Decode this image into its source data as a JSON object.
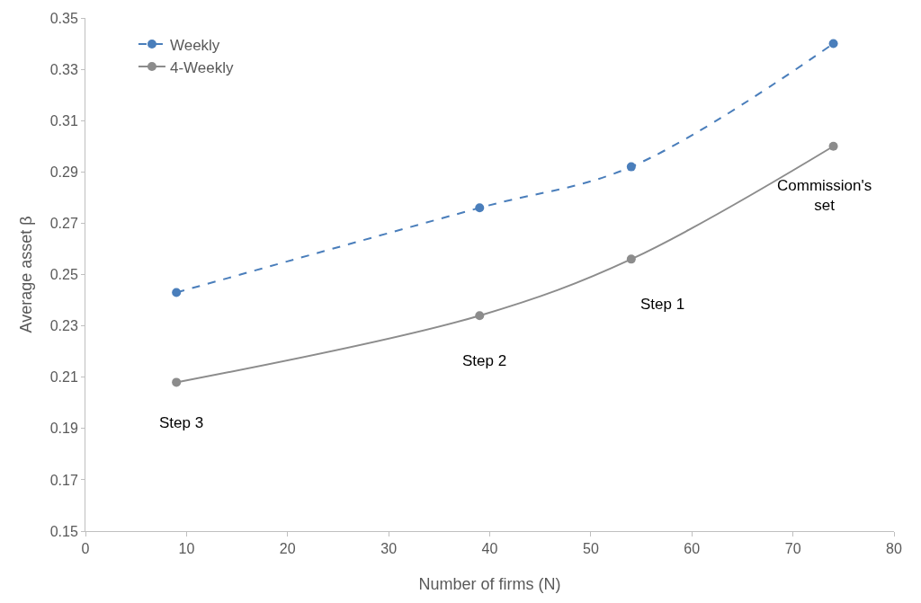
{
  "chart_data": {
    "type": "line",
    "xlabel": "Number of firms (N)",
    "ylabel": "Average asset β",
    "x": [
      9,
      39,
      54,
      74
    ],
    "series": [
      {
        "name": "Weekly",
        "color": "#4a7ebb",
        "values": [
          0.243,
          0.276,
          0.292,
          0.34
        ],
        "line_style": "dashed"
      },
      {
        "name": "4-Weekly",
        "color": "#8c8c8c",
        "values": [
          0.208,
          0.234,
          0.256,
          0.3
        ],
        "line_style": "solid"
      }
    ],
    "xlim": [
      0,
      80
    ],
    "xticks": [
      0,
      10,
      20,
      30,
      40,
      50,
      60,
      70,
      80
    ],
    "ylim": [
      0.15,
      0.35
    ],
    "yticks": [
      {
        "value": 0.15,
        "label": "0.15"
      },
      {
        "value": 0.17,
        "label": "0.17"
      },
      {
        "value": 0.19,
        "label": "0.19"
      },
      {
        "value": 0.21,
        "label": "0.21"
      },
      {
        "value": 0.23,
        "label": "0.23"
      },
      {
        "value": 0.25,
        "label": "0.25"
      },
      {
        "value": 0.27,
        "label": "0.27"
      },
      {
        "value": 0.29,
        "label": "0.29"
      },
      {
        "value": 0.31,
        "label": "0.31"
      },
      {
        "value": 0.33,
        "label": "0.33"
      },
      {
        "value": 0.35,
        "label": "0.35"
      }
    ],
    "annotations": [
      "Step 3",
      "Step 2",
      "Step 1",
      "Commission's\nset"
    ],
    "legend": "top left",
    "marker": "circle"
  }
}
